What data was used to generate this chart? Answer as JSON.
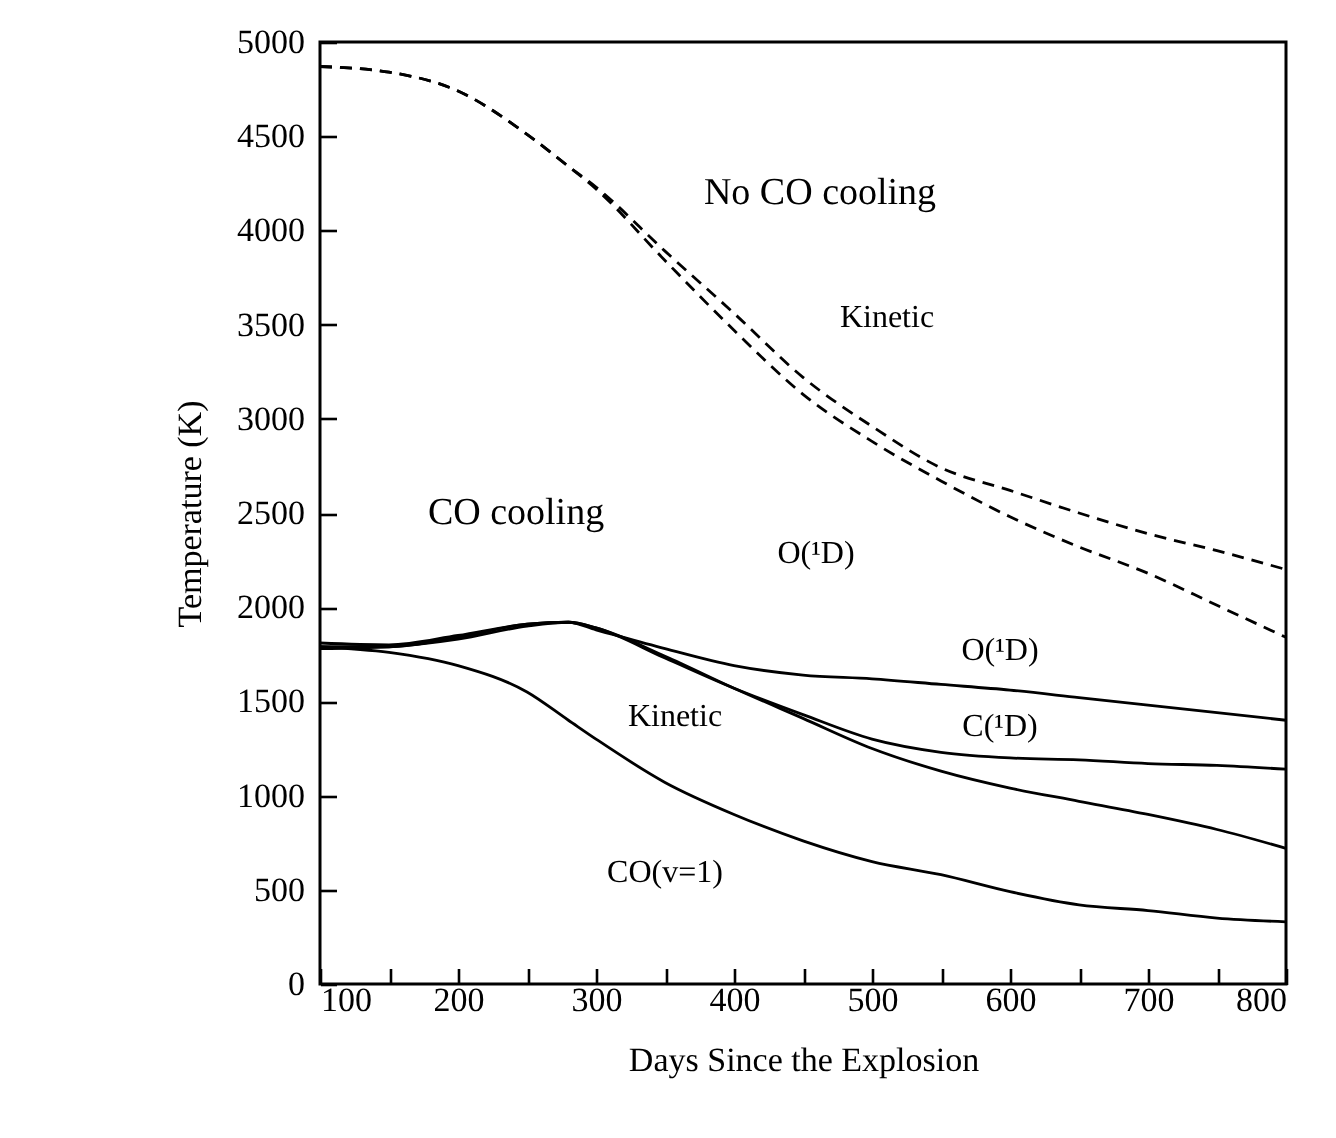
{
  "chart_data": {
    "type": "line",
    "xlabel": "Days Since the Explosion",
    "ylabel": "Temperature (K)",
    "annotations": [
      "No CO cooling",
      "CO cooling"
    ],
    "x": [
      100,
      150,
      200,
      250,
      280,
      300,
      350,
      400,
      450,
      500,
      550,
      600,
      650,
      700,
      750,
      800
    ],
    "series": [
      {
        "name": "Kinetic",
        "color": "#000000",
        "line_style": "dashed",
        "values": [
          4870,
          4840,
          4740,
          4510,
          4340,
          4230,
          3890,
          3560,
          3220,
          2960,
          2740,
          2620,
          2500,
          2390,
          2300,
          2200
        ]
      },
      {
        "name": "O(¹D)",
        "color": "#000000",
        "line_style": "dashed",
        "values": [
          4870,
          4840,
          4740,
          4510,
          4340,
          4220,
          3840,
          3470,
          3130,
          2880,
          2670,
          2480,
          2320,
          2180,
          2010,
          1840
        ]
      },
      {
        "name": "O(¹D)",
        "color": "#000000",
        "line_style": "solid",
        "values": [
          1810,
          1800,
          1850,
          1910,
          1920,
          1880,
          1780,
          1690,
          1640,
          1620,
          1590,
          1560,
          1520,
          1480,
          1440,
          1400
        ]
      },
      {
        "name": "C(¹D)",
        "color": "#000000",
        "line_style": "solid",
        "values": [
          1790,
          1790,
          1840,
          1910,
          1920,
          1890,
          1730,
          1570,
          1430,
          1300,
          1230,
          1200,
          1190,
          1170,
          1160,
          1140
        ]
      },
      {
        "name": "Kinetic",
        "color": "#000000",
        "line_style": "solid",
        "values": [
          1780,
          1790,
          1830,
          1900,
          1920,
          1890,
          1740,
          1570,
          1410,
          1250,
          1130,
          1040,
          970,
          900,
          820,
          720
        ]
      },
      {
        "name": "CO(v=1)",
        "color": "#000000",
        "line_style": "solid",
        "values": [
          1790,
          1760,
          1690,
          1550,
          1400,
          1300,
          1070,
          900,
          760,
          650,
          580,
          490,
          420,
          390,
          350,
          330
        ]
      }
    ],
    "xlim": [
      100,
      800
    ],
    "xticks": [
      100,
      {
        "value": 150,
        "label": null
      },
      200,
      {
        "value": 250,
        "label": null
      },
      300,
      {
        "value": 350,
        "label": null
      },
      400,
      {
        "value": 450,
        "label": null
      },
      500,
      {
        "value": 550,
        "label": null
      },
      600,
      {
        "value": 650,
        "label": null
      },
      700,
      {
        "value": 750,
        "label": null
      },
      800
    ],
    "ylim": [
      0,
      5000
    ],
    "yticks": [
      0,
      500,
      1000,
      1500,
      2000,
      2500,
      3000,
      3500,
      4000,
      4500,
      5000
    ],
    "grid": false,
    "legend": false,
    "marker": "none"
  }
}
